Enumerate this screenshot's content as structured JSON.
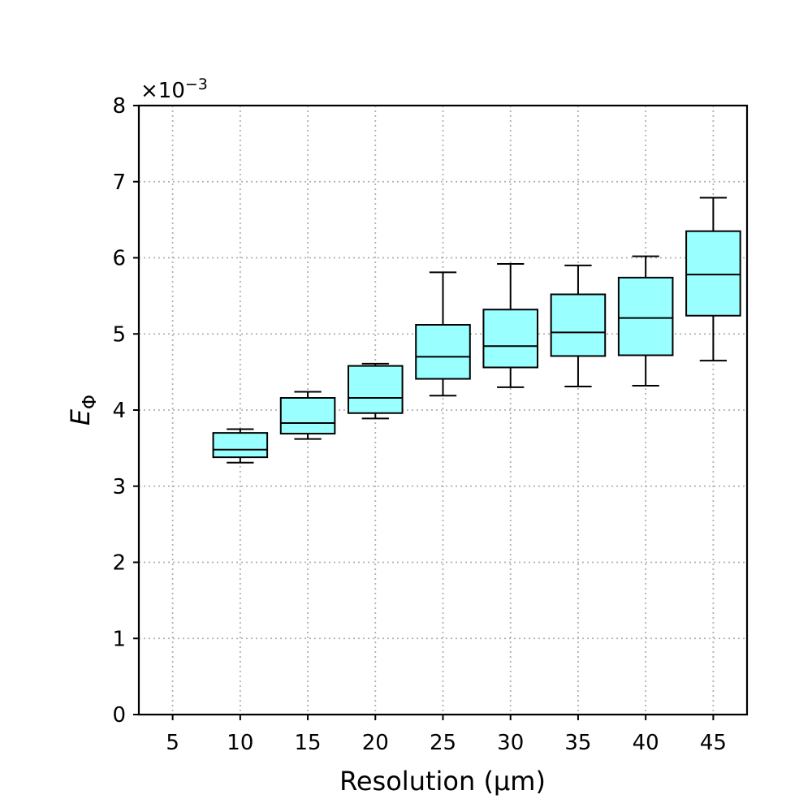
{
  "chart_data": {
    "type": "box",
    "xlabel": "Resolution (μm)",
    "ylabel_main": "E",
    "ylabel_sub": "Φ",
    "y_scale_base": "×10",
    "y_scale_exponent": "−3",
    "x_ticks": [
      5,
      10,
      15,
      20,
      25,
      30,
      35,
      40,
      45
    ],
    "x_lim": [
      2.5,
      47.5
    ],
    "y_ticks": [
      0,
      1,
      2,
      3,
      4,
      5,
      6,
      7,
      8
    ],
    "y_lim": [
      0,
      8
    ],
    "grid": true,
    "box_color": "#99ffff",
    "boxes": [
      {
        "x": 10,
        "whisker_low": 3.31,
        "q1": 3.38,
        "median": 3.48,
        "q3": 3.7,
        "whisker_high": 3.75
      },
      {
        "x": 15,
        "whisker_low": 3.62,
        "q1": 3.69,
        "median": 3.83,
        "q3": 4.16,
        "whisker_high": 4.24
      },
      {
        "x": 20,
        "whisker_low": 3.89,
        "q1": 3.96,
        "median": 4.16,
        "q3": 4.58,
        "whisker_high": 4.61
      },
      {
        "x": 25,
        "whisker_low": 4.19,
        "q1": 4.41,
        "median": 4.7,
        "q3": 5.12,
        "whisker_high": 5.81
      },
      {
        "x": 30,
        "whisker_low": 4.3,
        "q1": 4.56,
        "median": 4.84,
        "q3": 5.32,
        "whisker_high": 5.92
      },
      {
        "x": 35,
        "whisker_low": 4.31,
        "q1": 4.71,
        "median": 5.02,
        "q3": 5.52,
        "whisker_high": 5.9
      },
      {
        "x": 40,
        "whisker_low": 4.32,
        "q1": 4.72,
        "median": 5.21,
        "q3": 5.74,
        "whisker_high": 6.02
      },
      {
        "x": 45,
        "whisker_low": 4.65,
        "q1": 5.24,
        "median": 5.78,
        "q3": 6.35,
        "whisker_high": 6.79
      }
    ]
  }
}
